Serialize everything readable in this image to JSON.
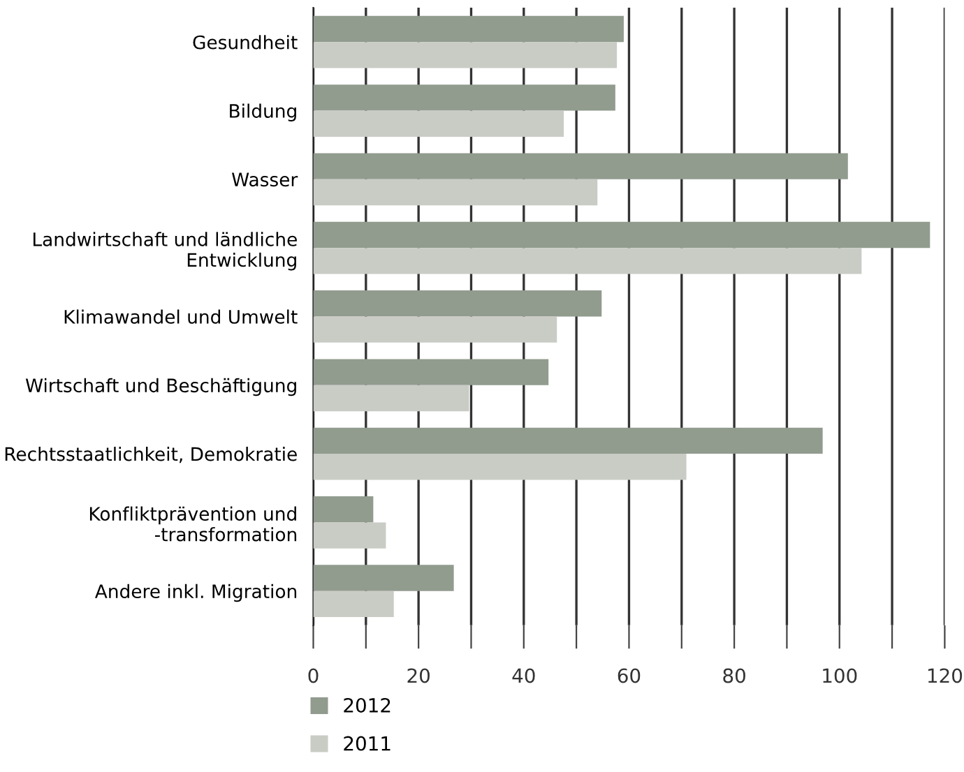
{
  "chart_data": {
    "type": "bar",
    "orientation": "horizontal",
    "categories": [
      "Gesundheit",
      "Bildung",
      "Wasser",
      "Landwirtschaft und ländliche\nEntwicklung",
      "Klimawandel und Umwelt",
      "Wirtschaft und Beschäftigung",
      "Rechtsstaatlichkeit, Demokratie",
      "Konfliktprävention und\n-transformation",
      "Andere inkl. Migration"
    ],
    "series": [
      {
        "name": "2012",
        "color": "#919b8e",
        "values": [
          59,
          57.4,
          101.6,
          117.2,
          54.8,
          44.7,
          96.8,
          11.4,
          26.7
        ]
      },
      {
        "name": "2011",
        "color": "#c9ccc5",
        "values": [
          57.7,
          47.6,
          54,
          104.2,
          46.3,
          29.6,
          70.9,
          13.8,
          15.3
        ]
      }
    ],
    "xlim": [
      0,
      120
    ],
    "xticks": [
      0,
      {
        "value": 10,
        "label": null
      },
      20,
      {
        "value": 30,
        "label": null
      },
      40,
      {
        "value": 50,
        "label": null
      },
      60,
      {
        "value": 70,
        "label": null
      },
      80,
      {
        "value": 90,
        "label": null
      },
      100,
      {
        "value": 110,
        "label": null
      },
      120
    ],
    "grid": "x",
    "legend": "bottom"
  }
}
